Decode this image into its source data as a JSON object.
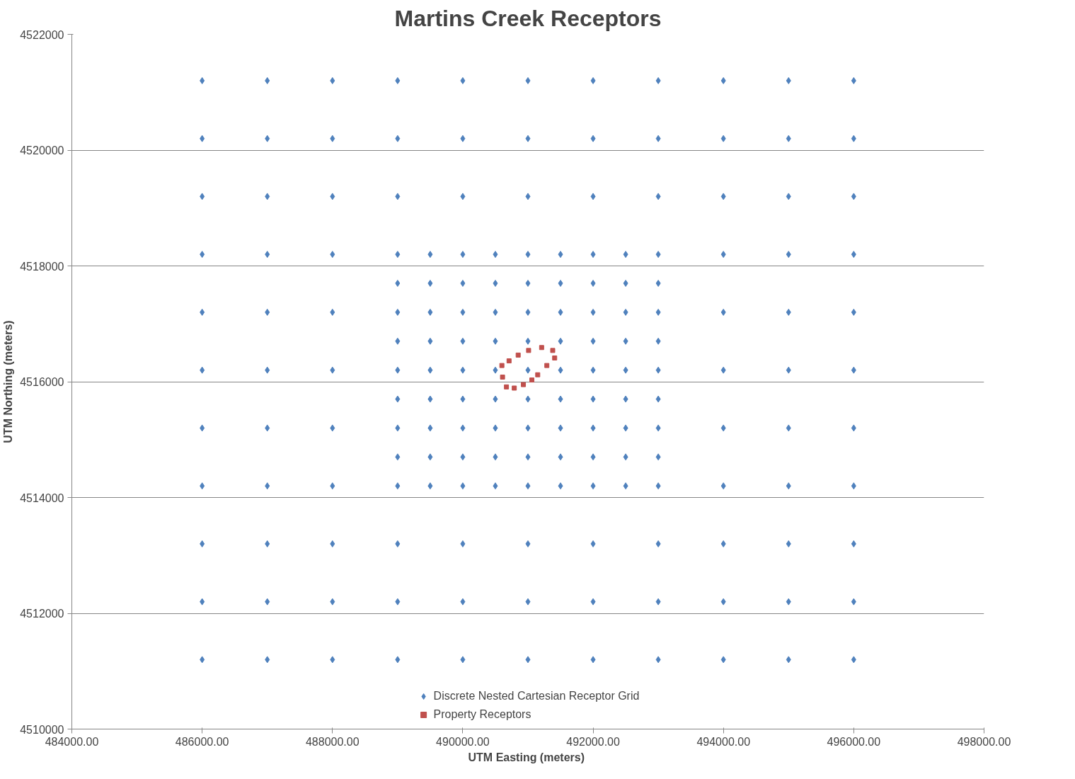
{
  "chart_data": {
    "type": "scatter",
    "title": "Martins Creek Receptors",
    "xlabel": "UTM Easting  (meters)",
    "ylabel": "UTM Northing (meters)",
    "xlim": [
      484000,
      498000
    ],
    "ylim": [
      4510000,
      4522000
    ],
    "xticks": [
      {
        "value": 484000,
        "label": "484000.00"
      },
      {
        "value": 486000,
        "label": "486000.00"
      },
      {
        "value": 488000,
        "label": "488000.00"
      },
      {
        "value": 490000,
        "label": "490000.00"
      },
      {
        "value": 492000,
        "label": "492000.00"
      },
      {
        "value": 494000,
        "label": "494000.00"
      },
      {
        "value": 496000,
        "label": "496000.00"
      },
      {
        "value": 498000,
        "label": "498000.00"
      }
    ],
    "yticks": [
      4510000,
      4512000,
      4514000,
      4516000,
      4518000,
      4520000,
      4522000
    ],
    "grid": "y",
    "legend": "bottom",
    "series": [
      {
        "name": "Discrete Nested Cartesian Receptor Grid",
        "color": "#4f81bd",
        "marker": "diamond",
        "x": [
          486000,
          487000,
          488000,
          489000,
          490000,
          491000,
          492000,
          493000,
          494000,
          495000,
          496000,
          486000,
          487000,
          488000,
          489000,
          490000,
          491000,
          492000,
          493000,
          494000,
          495000,
          496000,
          486000,
          487000,
          488000,
          489000,
          490000,
          491000,
          492000,
          493000,
          494000,
          495000,
          496000,
          486000,
          487000,
          488000,
          489000,
          490000,
          491000,
          492000,
          493000,
          494000,
          495000,
          496000,
          486000,
          487000,
          488000,
          489000,
          490000,
          491000,
          492000,
          493000,
          494000,
          495000,
          496000,
          486000,
          487000,
          488000,
          489000,
          490000,
          491000,
          492000,
          493000,
          494000,
          495000,
          496000,
          486000,
          487000,
          488000,
          489000,
          490000,
          491000,
          492000,
          493000,
          494000,
          495000,
          496000,
          486000,
          487000,
          488000,
          489000,
          490000,
          491000,
          492000,
          493000,
          494000,
          495000,
          496000,
          486000,
          487000,
          488000,
          489000,
          490000,
          491000,
          492000,
          493000,
          494000,
          495000,
          496000,
          486000,
          487000,
          488000,
          489000,
          490000,
          491000,
          492000,
          493000,
          494000,
          495000,
          496000,
          486000,
          487000,
          488000,
          489000,
          490000,
          491000,
          492000,
          493000,
          494000,
          495000,
          496000,
          489500,
          490500,
          491500,
          492500,
          489000,
          489500,
          490000,
          490500,
          491000,
          491500,
          492000,
          492500,
          493000,
          489500,
          490500,
          491500,
          492500,
          489000,
          489500,
          490000,
          490500,
          491000,
          491500,
          492000,
          492500,
          493000,
          489500,
          490500,
          491500,
          492500,
          489000,
          489500,
          490000,
          490500,
          491000,
          491500,
          492000,
          492500,
          493000,
          489500,
          490500,
          491500,
          492500,
          489000,
          489500,
          490000,
          490500,
          491000,
          491500,
          492000,
          492500,
          493000,
          489500,
          490500,
          491500,
          492500
        ],
        "values": [
          4511200,
          4511200,
          4511200,
          4511200,
          4511200,
          4511200,
          4511200,
          4511200,
          4511200,
          4511200,
          4511200,
          4512200,
          4512200,
          4512200,
          4512200,
          4512200,
          4512200,
          4512200,
          4512200,
          4512200,
          4512200,
          4512200,
          4513200,
          4513200,
          4513200,
          4513200,
          4513200,
          4513200,
          4513200,
          4513200,
          4513200,
          4513200,
          4513200,
          4514200,
          4514200,
          4514200,
          4514200,
          4514200,
          4514200,
          4514200,
          4514200,
          4514200,
          4514200,
          4514200,
          4515200,
          4515200,
          4515200,
          4515200,
          4515200,
          4515200,
          4515200,
          4515200,
          4515200,
          4515200,
          4515200,
          4516200,
          4516200,
          4516200,
          4516200,
          4516200,
          4516200,
          4516200,
          4516200,
          4516200,
          4516200,
          4516200,
          4517200,
          4517200,
          4517200,
          4517200,
          4517200,
          4517200,
          4517200,
          4517200,
          4517200,
          4517200,
          4517200,
          4518200,
          4518200,
          4518200,
          4518200,
          4518200,
          4518200,
          4518200,
          4518200,
          4518200,
          4518200,
          4518200,
          4519200,
          4519200,
          4519200,
          4519200,
          4519200,
          4519200,
          4519200,
          4519200,
          4519200,
          4519200,
          4519200,
          4520200,
          4520200,
          4520200,
          4520200,
          4520200,
          4520200,
          4520200,
          4520200,
          4520200,
          4520200,
          4520200,
          4521200,
          4521200,
          4521200,
          4521200,
          4521200,
          4521200,
          4521200,
          4521200,
          4521200,
          4521200,
          4521200,
          4514200,
          4514200,
          4514200,
          4514200,
          4514700,
          4514700,
          4514700,
          4514700,
          4514700,
          4514700,
          4514700,
          4514700,
          4514700,
          4515200,
          4515200,
          4515200,
          4515200,
          4515700,
          4515700,
          4515700,
          4515700,
          4515700,
          4515700,
          4515700,
          4515700,
          4515700,
          4516200,
          4516200,
          4516200,
          4516200,
          4516700,
          4516700,
          4516700,
          4516700,
          4516700,
          4516700,
          4516700,
          4516700,
          4516700,
          4517200,
          4517200,
          4517200,
          4517200,
          4517700,
          4517700,
          4517700,
          4517700,
          4517700,
          4517700,
          4517700,
          4517700,
          4517700,
          4518200,
          4518200,
          4518200,
          4518200
        ]
      },
      {
        "name": "Property Receptors",
        "color": "#c0504d",
        "marker": "square",
        "x": [
          490600,
          490610,
          490670,
          490790,
          490930,
          491060,
          491150,
          491290,
          491410,
          491380,
          491210,
          491010,
          490850,
          490710
        ],
        "values": [
          4516280,
          4516080,
          4515910,
          4515890,
          4515950,
          4516030,
          4516120,
          4516280,
          4516410,
          4516540,
          4516590,
          4516540,
          4516460,
          4516360
        ]
      }
    ]
  }
}
